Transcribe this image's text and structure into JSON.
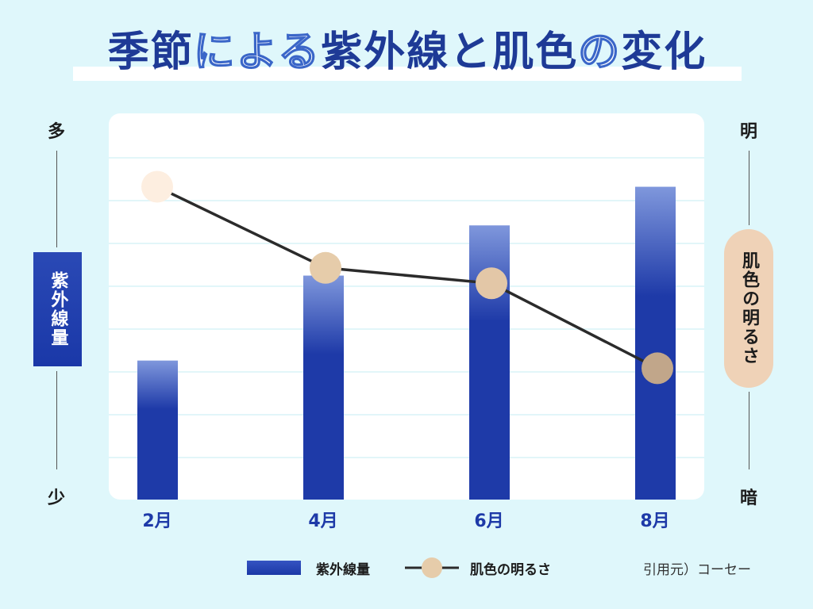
{
  "title_parts": [
    {
      "text": "季節",
      "style": "solid"
    },
    {
      "text": "による",
      "style": "outline"
    },
    {
      "text": "紫外線と肌色",
      "style": "solid"
    },
    {
      "text": "の",
      "style": "outline"
    },
    {
      "text": "変化",
      "style": "solid"
    }
  ],
  "left_axis": {
    "top": "多",
    "bottom": "少",
    "label": "紫外線量"
  },
  "right_axis": {
    "top": "明",
    "bottom": "暗",
    "label": "肌色の明るさ"
  },
  "legend": {
    "bar_label": "紫外線量",
    "line_label": "肌色の明るさ"
  },
  "source": "引用元）コーセー",
  "colors": {
    "bar": "#1e3aa8",
    "bar_top": "#7f97dc",
    "line": "#2b2b2b",
    "grid": "#d9f3f7"
  },
  "chart_data": {
    "type": "bar",
    "categories": [
      "2月",
      "4月",
      "6月",
      "8月"
    ],
    "series": [
      {
        "name": "紫外線量",
        "type": "bar",
        "axis": "left",
        "values": [
          0.36,
          0.58,
          0.71,
          0.81
        ]
      },
      {
        "name": "肌色の明るさ",
        "type": "line",
        "axis": "right",
        "values": [
          0.81,
          0.6,
          0.56,
          0.34
        ],
        "marker_colors": [
          "#fdeee0",
          "#e6ccaa",
          "#e3c7a7",
          "#c1a68a"
        ]
      }
    ],
    "title": "季節による紫外線と肌色の変化",
    "ylim": [
      0,
      1
    ],
    "grid": true
  }
}
